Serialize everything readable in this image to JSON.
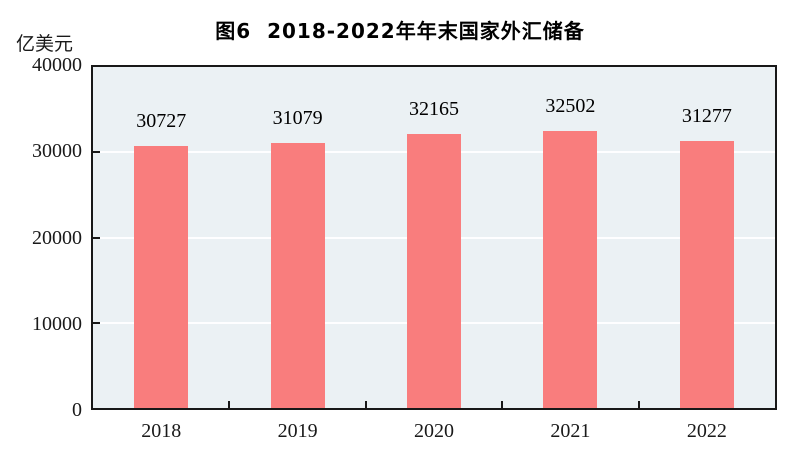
{
  "title": "图6  2018-2022年年末国家外汇储备",
  "unit_label": "亿美元",
  "chart_data": {
    "type": "bar",
    "title": "图6 2018-2022年年末国家外汇储备",
    "ylabel": "亿美元",
    "categories": [
      "2018",
      "2019",
      "2020",
      "2021",
      "2022"
    ],
    "values": [
      30727,
      31079,
      32165,
      32502,
      31277
    ],
    "ylim": [
      0,
      40000
    ],
    "yticks": [
      0,
      10000,
      20000,
      30000,
      40000
    ],
    "grid": true,
    "legend": false,
    "data_labels": true,
    "colors": {
      "bar": "#f97d7d",
      "plot_background": "#ebf1f4",
      "gridline": "#ffffff",
      "axis": "#181818",
      "text": "#111111"
    }
  }
}
